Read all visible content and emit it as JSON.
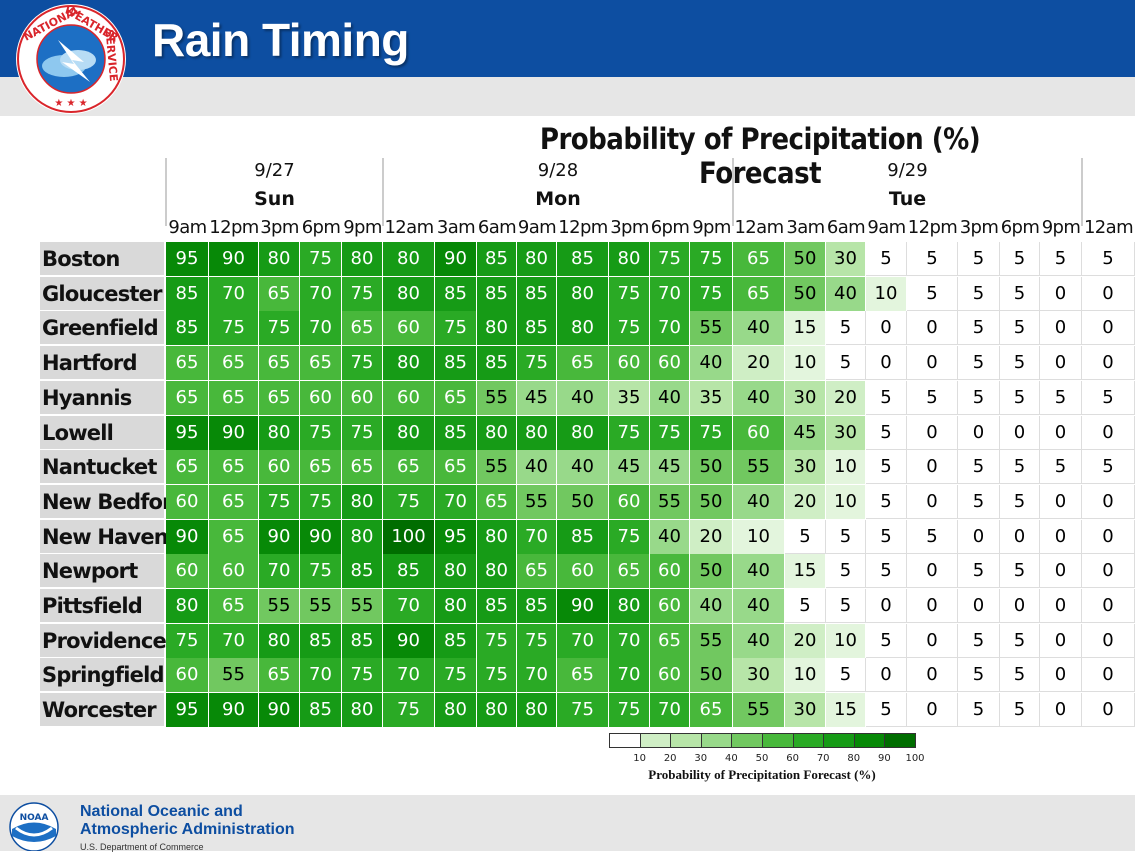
{
  "header": {
    "title": "Rain Timing"
  },
  "chart_title": "Probability of Precipitation (%) Forecast",
  "footer": {
    "org_line1": "National Oceanic and",
    "org_line2": "Atmospheric Administration",
    "dept": "U.S. Department of Commerce"
  },
  "logos": {
    "nws": "NATIONAL WEATHER SERVICE",
    "noaa": "NOAA"
  },
  "colors": {
    "header_bg": "#0d4ea1",
    "accent": "#0d4ea1"
  },
  "legend": {
    "title": "Probability of Precipitation Forecast (%)",
    "ticks": [
      "10",
      "20",
      "30",
      "40",
      "50",
      "60",
      "70",
      "80",
      "90",
      "100"
    ]
  },
  "chart_data": {
    "type": "heatmap",
    "title": "Probability of Precipitation (%) Forecast",
    "days": [
      {
        "date": "9/27",
        "day": "Sun"
      },
      {
        "date": "9/28",
        "day": "Mon"
      },
      {
        "date": "9/29",
        "day": "Tue"
      }
    ],
    "hours": [
      "9am",
      "12pm",
      "3pm",
      "6pm",
      "9pm",
      "12am",
      "3am",
      "6am",
      "9am",
      "12pm",
      "3pm",
      "6pm",
      "9pm",
      "12am",
      "3am",
      "6am",
      "9am",
      "12pm",
      "3pm",
      "6pm",
      "9pm",
      "12am"
    ],
    "rows": [
      {
        "city": "Boston",
        "values": [
          95,
          90,
          80,
          75,
          80,
          80,
          90,
          85,
          80,
          85,
          80,
          75,
          75,
          65,
          50,
          30,
          5,
          5,
          5,
          5,
          5,
          5
        ]
      },
      {
        "city": "Gloucester",
        "values": [
          85,
          70,
          65,
          70,
          75,
          80,
          85,
          85,
          85,
          80,
          75,
          70,
          75,
          65,
          50,
          40,
          10,
          5,
          5,
          5,
          0,
          0
        ]
      },
      {
        "city": "Greenfield",
        "values": [
          85,
          75,
          75,
          70,
          65,
          60,
          75,
          80,
          85,
          80,
          75,
          70,
          55,
          40,
          15,
          5,
          0,
          0,
          5,
          5,
          0,
          0
        ]
      },
      {
        "city": "Hartford",
        "values": [
          65,
          65,
          65,
          65,
          75,
          80,
          85,
          85,
          75,
          65,
          60,
          60,
          40,
          20,
          10,
          5,
          0,
          0,
          5,
          5,
          0,
          0
        ]
      },
      {
        "city": "Hyannis",
        "values": [
          65,
          65,
          65,
          60,
          60,
          60,
          65,
          55,
          45,
          40,
          35,
          40,
          35,
          40,
          30,
          20,
          5,
          5,
          5,
          5,
          5,
          5
        ]
      },
      {
        "city": "Lowell",
        "values": [
          95,
          90,
          80,
          75,
          75,
          80,
          85,
          80,
          80,
          80,
          75,
          75,
          75,
          60,
          45,
          30,
          5,
          0,
          0,
          0,
          0,
          0
        ]
      },
      {
        "city": "Nantucket",
        "values": [
          65,
          65,
          60,
          65,
          65,
          65,
          65,
          55,
          40,
          40,
          45,
          45,
          50,
          55,
          30,
          10,
          5,
          0,
          5,
          5,
          5,
          5
        ]
      },
      {
        "city": "New Bedford",
        "values": [
          60,
          65,
          75,
          75,
          80,
          75,
          70,
          65,
          55,
          50,
          60,
          55,
          50,
          40,
          20,
          10,
          5,
          0,
          5,
          5,
          0,
          0
        ]
      },
      {
        "city": "New Haven",
        "values": [
          90,
          65,
          90,
          90,
          80,
          100,
          95,
          80,
          70,
          85,
          75,
          40,
          20,
          10,
          5,
          5,
          5,
          5,
          0,
          0,
          0,
          0
        ]
      },
      {
        "city": "Newport",
        "values": [
          60,
          60,
          70,
          75,
          85,
          85,
          80,
          80,
          65,
          60,
          65,
          60,
          50,
          40,
          15,
          5,
          5,
          0,
          5,
          5,
          0,
          0
        ]
      },
      {
        "city": "Pittsfield",
        "values": [
          80,
          65,
          55,
          55,
          55,
          70,
          80,
          85,
          85,
          90,
          80,
          60,
          40,
          40,
          5,
          5,
          0,
          0,
          0,
          0,
          0,
          0
        ]
      },
      {
        "city": "Providence",
        "values": [
          75,
          70,
          80,
          85,
          85,
          90,
          85,
          75,
          75,
          70,
          70,
          65,
          55,
          40,
          20,
          10,
          5,
          0,
          5,
          5,
          0,
          0
        ]
      },
      {
        "city": "Springfield",
        "values": [
          60,
          55,
          65,
          70,
          75,
          70,
          75,
          75,
          70,
          65,
          70,
          60,
          50,
          30,
          10,
          5,
          0,
          0,
          5,
          5,
          0,
          0
        ]
      },
      {
        "city": "Worcester",
        "values": [
          95,
          90,
          90,
          85,
          80,
          75,
          80,
          80,
          80,
          75,
          75,
          70,
          65,
          55,
          30,
          15,
          5,
          0,
          5,
          5,
          0,
          0
        ]
      }
    ],
    "color_scale": [
      "#ffffff",
      "#e3f5dd",
      "#cfeec5",
      "#b7e5a8",
      "#98d98a",
      "#71c860",
      "#48b83b",
      "#2aaa25",
      "#169b16",
      "#078907",
      "#006d00"
    ]
  }
}
